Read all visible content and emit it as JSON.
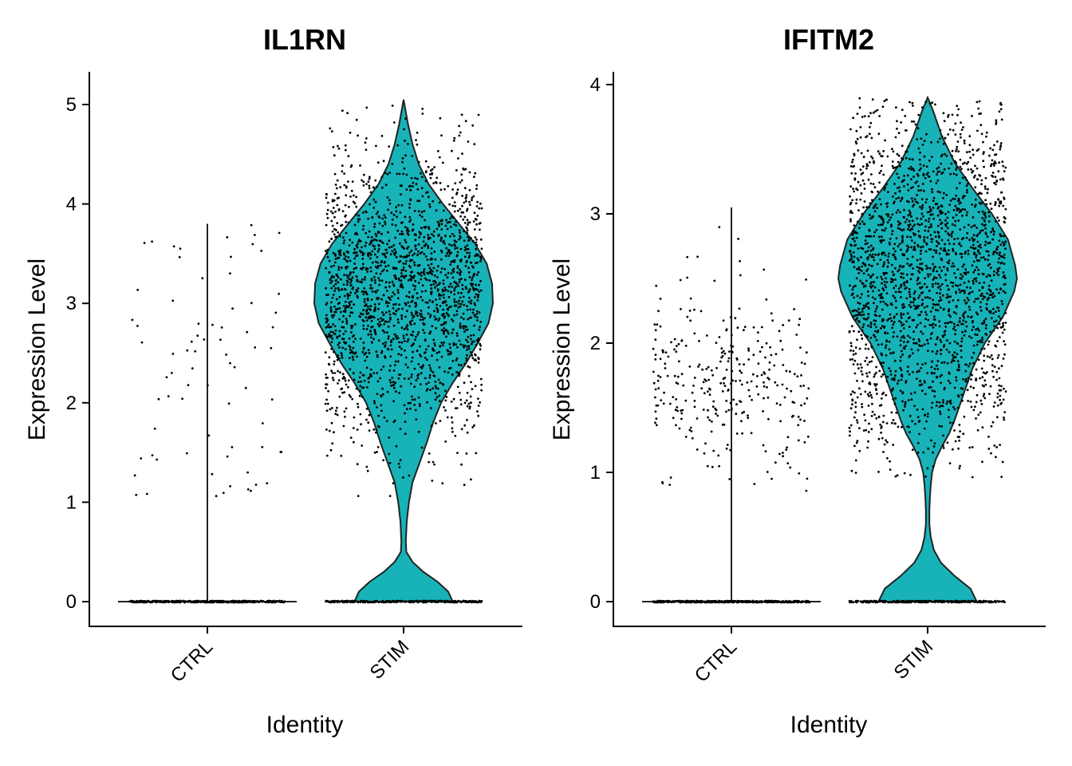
{
  "chart_data": [
    {
      "type": "violin",
      "title": "IL1RN",
      "xlabel": "Identity",
      "ylabel": "Expression Level",
      "categories": [
        "CTRL",
        "STIM"
      ],
      "ylim": [
        -0.25,
        5.3
      ],
      "yticks": [
        0,
        1,
        2,
        3,
        4,
        5
      ],
      "fill_color": "#17b3b8",
      "groups": [
        {
          "name": "CTRL",
          "max": 3.8,
          "nonzero_min": 1.05,
          "nonzero_max": 3.8,
          "zero_points": 420,
          "nonzero_points": 75
        },
        {
          "name": "STIM",
          "max": 5.05,
          "mode": 3.1,
          "zero_mode": 0.05,
          "nonzero_min": 1.05,
          "nonzero_max": 5.05,
          "zero_points": 300,
          "nonzero_points": 1900,
          "profile": [
            [
              0,
              0.55
            ],
            [
              0.1,
              0.5
            ],
            [
              0.2,
              0.38
            ],
            [
              0.3,
              0.22
            ],
            [
              0.4,
              0.1
            ],
            [
              0.5,
              0.03
            ],
            [
              0.6,
              0.025
            ],
            [
              0.8,
              0.035
            ],
            [
              1.0,
              0.06
            ],
            [
              1.2,
              0.1
            ],
            [
              1.4,
              0.18
            ],
            [
              1.6,
              0.26
            ],
            [
              1.8,
              0.33
            ],
            [
              2.0,
              0.42
            ],
            [
              2.2,
              0.55
            ],
            [
              2.4,
              0.7
            ],
            [
              2.6,
              0.83
            ],
            [
              2.8,
              0.95
            ],
            [
              3.0,
              1.0
            ],
            [
              3.2,
              0.99
            ],
            [
              3.4,
              0.93
            ],
            [
              3.6,
              0.8
            ],
            [
              3.8,
              0.62
            ],
            [
              4.0,
              0.44
            ],
            [
              4.2,
              0.28
            ],
            [
              4.4,
              0.17
            ],
            [
              4.6,
              0.1
            ],
            [
              4.8,
              0.05
            ],
            [
              5.05,
              0.0
            ]
          ]
        }
      ]
    },
    {
      "type": "violin",
      "title": "IFITM2",
      "xlabel": "Identity",
      "ylabel": "Expression Level",
      "categories": [
        "CTRL",
        "STIM"
      ],
      "ylim": [
        -0.2,
        4.05
      ],
      "yticks": [
        0,
        1,
        2,
        3,
        4
      ],
      "fill_color": "#17b3b8",
      "groups": [
        {
          "name": "CTRL",
          "max": 3.05,
          "nonzero_min": 0.8,
          "nonzero_max": 3.05,
          "zero_points": 420,
          "nonzero_points": 320
        },
        {
          "name": "STIM",
          "max": 3.9,
          "mode": 2.5,
          "zero_mode": 0.05,
          "nonzero_min": 0.95,
          "nonzero_max": 3.9,
          "zero_points": 300,
          "nonzero_points": 2100,
          "profile": [
            [
              0,
              0.55
            ],
            [
              0.1,
              0.48
            ],
            [
              0.2,
              0.3
            ],
            [
              0.3,
              0.15
            ],
            [
              0.4,
              0.07
            ],
            [
              0.5,
              0.035
            ],
            [
              0.6,
              0.02
            ],
            [
              0.7,
              0.02
            ],
            [
              0.8,
              0.025
            ],
            [
              0.9,
              0.035
            ],
            [
              1.0,
              0.05
            ],
            [
              1.1,
              0.09
            ],
            [
              1.2,
              0.16
            ],
            [
              1.3,
              0.24
            ],
            [
              1.4,
              0.3
            ],
            [
              1.5,
              0.35
            ],
            [
              1.6,
              0.4
            ],
            [
              1.8,
              0.5
            ],
            [
              2.0,
              0.64
            ],
            [
              2.2,
              0.84
            ],
            [
              2.4,
              0.97
            ],
            [
              2.5,
              1.0
            ],
            [
              2.6,
              0.98
            ],
            [
              2.8,
              0.9
            ],
            [
              3.0,
              0.72
            ],
            [
              3.2,
              0.5
            ],
            [
              3.4,
              0.3
            ],
            [
              3.6,
              0.16
            ],
            [
              3.8,
              0.06
            ],
            [
              3.9,
              0.0
            ]
          ]
        }
      ]
    }
  ]
}
